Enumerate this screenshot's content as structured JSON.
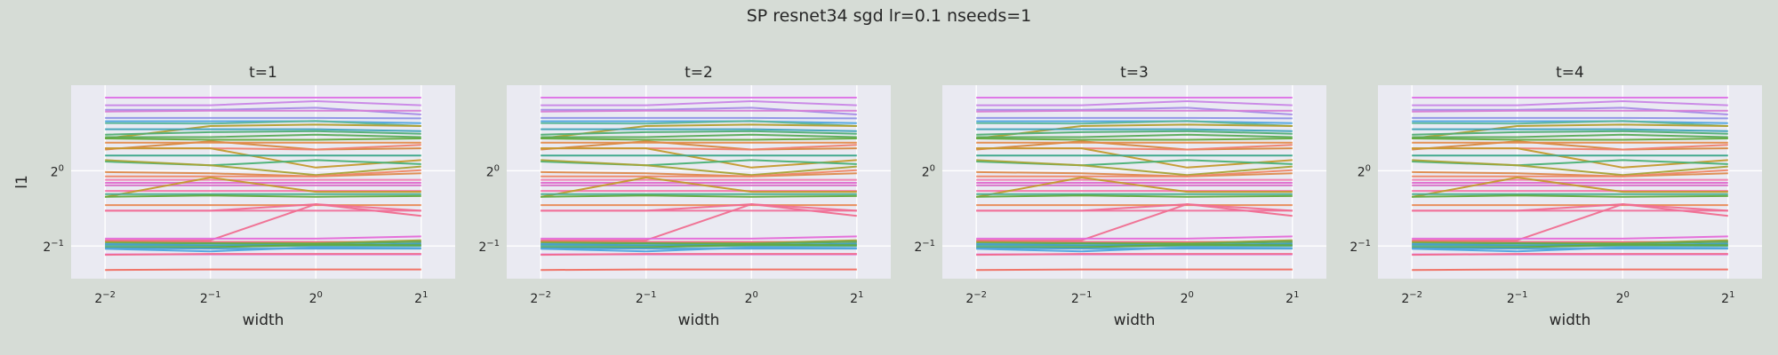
{
  "figure": {
    "title": "SP resnet34 sgd lr=0.1 nseeds=1",
    "background": "#d6dcd6",
    "axes_background": "#eaeaf2",
    "grid_color": "#ffffff"
  },
  "chart_data": {
    "type": "line",
    "x_scale": "log2",
    "y_scale": "log2",
    "x": [
      0.25,
      0.5,
      1,
      2
    ],
    "xlim": [
      0.2,
      2.5
    ],
    "ylim": [
      0.37,
      2.2
    ],
    "x_ticks": [
      {
        "base": "2",
        "exp": "−2",
        "value": 0.25
      },
      {
        "base": "2",
        "exp": "−1",
        "value": 0.5
      },
      {
        "base": "2",
        "exp": "0",
        "value": 1
      },
      {
        "base": "2",
        "exp": "1",
        "value": 2
      }
    ],
    "y_ticks": [
      {
        "base": "2",
        "exp": "0",
        "value": 1
      },
      {
        "base": "2",
        "exp": "−1",
        "value": 0.5
      }
    ],
    "xlabel": "width",
    "ylabel": "l1",
    "panels": [
      {
        "title": "t=1"
      },
      {
        "title": "t=2"
      },
      {
        "title": "t=3"
      },
      {
        "title": "t=4"
      }
    ],
    "series": [
      {
        "color": "#dd72e6",
        "values": [
          1.962,
          1.962,
          1.962,
          1.962
        ]
      },
      {
        "color": "#c986e6",
        "values": [
          1.829,
          1.829,
          1.899,
          1.829
        ]
      },
      {
        "color": "#a68be6",
        "values": [
          1.753,
          1.753,
          1.787,
          1.679
        ]
      },
      {
        "color": "#d67dd4",
        "values": [
          1.726,
          1.738,
          1.738,
          1.738
        ]
      },
      {
        "color": "#8f93e6",
        "values": [
          1.627,
          1.627,
          1.627,
          1.62
        ]
      },
      {
        "color": "#4fa4e0",
        "values": [
          1.578,
          1.578,
          1.578,
          1.55
        ]
      },
      {
        "color": "#5cb79a",
        "values": [
          1.551,
          1.544,
          1.582,
          1.51
        ]
      },
      {
        "color": "#b39f2f",
        "values": [
          1.347,
          1.51,
          1.53,
          1.51
        ]
      },
      {
        "color": "#3fa2b6",
        "values": [
          1.467,
          1.467,
          1.467,
          1.44
        ]
      },
      {
        "color": "#4fae73",
        "values": [
          1.395,
          1.427,
          1.44,
          1.406
        ]
      },
      {
        "color": "#58ab57",
        "values": [
          1.363,
          1.363,
          1.395,
          1.363
        ]
      },
      {
        "color": "#62aa3c",
        "values": [
          1.347,
          1.33,
          1.33,
          1.347
        ]
      },
      {
        "color": "#d6873e",
        "values": [
          1.216,
          1.312,
          1.216,
          1.23
        ]
      },
      {
        "color": "#e38b48",
        "values": [
          1.295,
          1.295,
          1.295,
          1.295
        ]
      },
      {
        "color": "#f07f6a",
        "values": [
          1.23,
          1.23,
          1.216,
          1.27
        ]
      },
      {
        "color": "#c49a2c",
        "values": [
          1.23,
          1.23,
          1.03,
          1.103
        ]
      },
      {
        "color": "#39a789",
        "values": [
          1.15,
          1.15,
          1.15,
          1.15
        ]
      },
      {
        "color": "#49b174",
        "values": [
          1.089,
          1.051,
          1.103,
          1.063
        ]
      },
      {
        "color": "#a7a335",
        "values": [
          1.103,
          1.051,
          0.961,
          1.04
        ]
      },
      {
        "color": "#dd8a4c",
        "values": [
          0.988,
          0.977,
          0.949,
          0.977
        ]
      },
      {
        "color": "#ee8666",
        "values": [
          0.95,
          0.95,
          0.95,
          1.006
        ]
      },
      {
        "color": "#f080b0",
        "values": [
          0.92,
          0.92,
          0.92,
          0.92
        ]
      },
      {
        "color": "#e06ecf",
        "values": [
          0.895,
          0.895,
          0.895,
          0.895
        ]
      },
      {
        "color": "#d86fc7",
        "values": [
          0.874,
          0.874,
          0.874,
          0.874
        ]
      },
      {
        "color": "#f574a8",
        "values": [
          0.831,
          0.831,
          0.831,
          0.831
        ]
      },
      {
        "color": "#c49a2c",
        "values": [
          0.786,
          0.94,
          0.824,
          0.824
        ]
      },
      {
        "color": "#47ae8e",
        "values": [
          0.806,
          0.806,
          0.806,
          0.806
        ]
      },
      {
        "color": "#62aa3c",
        "values": [
          0.787,
          0.796,
          0.787,
          0.792
        ]
      },
      {
        "color": "#e98a55",
        "values": [
          0.729,
          0.729,
          0.729,
          0.729
        ]
      },
      {
        "color": "#f06b8e",
        "values": [
          0.692,
          0.692,
          0.735,
          0.66
        ]
      },
      {
        "color": "#f0709a",
        "values": [
          0.692,
          0.692,
          0.692,
          0.692
        ]
      },
      {
        "color": "#f06e90",
        "values": [
          0.527,
          0.527,
          0.735,
          0.692
        ]
      },
      {
        "color": "#e56ad8",
        "values": [
          0.535,
          0.535,
          0.535,
          0.546
        ]
      },
      {
        "color": "#f1687c",
        "values": [
          0.522,
          0.519,
          0.519,
          0.519
        ]
      },
      {
        "color": "#a3a134",
        "values": [
          0.519,
          0.513,
          0.513,
          0.527
        ]
      },
      {
        "color": "#58ab57",
        "values": [
          0.512,
          0.512,
          0.51,
          0.52
        ]
      },
      {
        "color": "#4fa0d8",
        "values": [
          0.509,
          0.503,
          0.503,
          0.507
        ]
      },
      {
        "color": "#3fa2b6",
        "values": [
          0.503,
          0.503,
          0.503,
          0.511
        ]
      },
      {
        "color": "#5bb2a8",
        "values": [
          0.5,
          0.497,
          0.5,
          0.5
        ]
      },
      {
        "color": "#62aa3c",
        "values": [
          0.494,
          0.494,
          0.506,
          0.503
        ]
      },
      {
        "color": "#4a9fd2",
        "values": [
          0.49,
          0.488,
          0.488,
          0.488
        ]
      },
      {
        "color": "#4fa4e0",
        "values": [
          0.487,
          0.476,
          0.494,
          0.49
        ]
      },
      {
        "color": "#dd72e6",
        "values": [
          0.463,
          0.463,
          0.463,
          0.463
        ]
      },
      {
        "color": "#f06b8e",
        "values": [
          0.461,
          0.465,
          0.465,
          0.465
        ]
      },
      {
        "color": "#f06e60",
        "values": [
          0.401,
          0.403,
          0.403,
          0.403
        ]
      }
    ]
  }
}
